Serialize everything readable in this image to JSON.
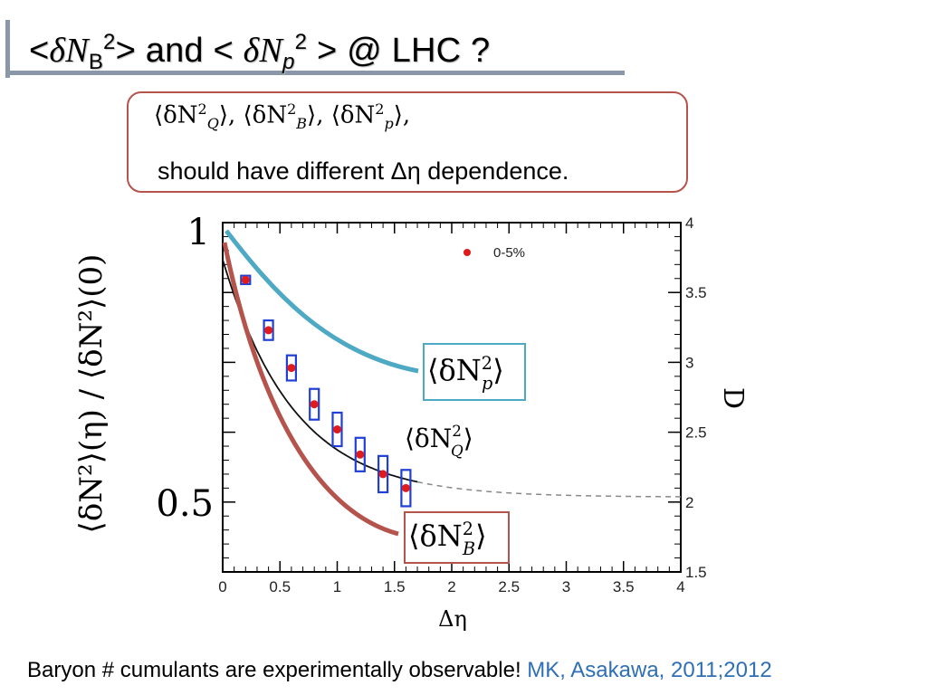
{
  "slide": {
    "title": {
      "part1": "<",
      "delta1": "δN",
      "sub1": "B",
      "sup1": "2",
      "part2": "> and < ",
      "delta2": "δN",
      "sub2": "p",
      "sup2": "2",
      "part3": " > @ LHC ?"
    },
    "callout": {
      "formula_q": "⟨δN",
      "q_sub": "Q",
      "formula_b": "⟩, ⟨δN",
      "b_sub": "B",
      "formula_p": "⟩, ⟨δN",
      "p_sub": "p",
      "formula_end": "⟩,",
      "sup": "2",
      "text": "should have different Δη dependence."
    },
    "footer": {
      "text": "Baryon # cumulants are experimentally observable! ",
      "reference": "MK, Asakawa, 2011;2012"
    }
  },
  "chart_data": {
    "type": "scatter",
    "x_label": "Δη",
    "y_label_left": "⟨δN²⟩(η) / ⟨δN²⟩(0)",
    "y_label_right": "D",
    "x_ticks": [
      "0",
      "0.5",
      "1",
      "1.5",
      "2",
      "2.5",
      "3",
      "3.5",
      "4"
    ],
    "y_ticks_left": [
      "1",
      "0.5"
    ],
    "y_ticks_right": [
      "4",
      "3.5",
      "3",
      "2.5",
      "2",
      "1.5"
    ],
    "xlim": [
      0,
      4
    ],
    "ylim_right": [
      1.5,
      4
    ],
    "legend": {
      "label": "0-5%",
      "color": "#e01b1b",
      "position": "top-right"
    },
    "data_points": {
      "x": [
        0.2,
        0.4,
        0.6,
        0.8,
        1.0,
        1.2,
        1.4,
        1.6
      ],
      "y": [
        3.59,
        3.23,
        2.96,
        2.7,
        2.52,
        2.34,
        2.2,
        2.1
      ],
      "err": [
        0.03,
        0.07,
        0.09,
        0.11,
        0.12,
        0.12,
        0.13,
        0.13
      ],
      "color": "#e01b1b",
      "box_color": "#1f3fd6"
    },
    "fit_curve": {
      "label": "⟨δN²Q⟩",
      "color": "#111111"
    },
    "curves": [
      {
        "name": "⟨δN²p⟩",
        "color": "#4ea9c4"
      },
      {
        "name": "⟨δN²B⟩",
        "color": "#b5534d"
      }
    ],
    "annotation_labels": {
      "p": "⟨δN",
      "p_sub": "p",
      "q": "⟨δN",
      "q_sub": "Q",
      "b": "⟨δN",
      "b_sub": "B",
      "close": "⟩",
      "sup": "2"
    },
    "colors": {
      "axis": "#000000",
      "cyan_box": "#4ea9c4",
      "red_box": "#b5534d"
    }
  }
}
